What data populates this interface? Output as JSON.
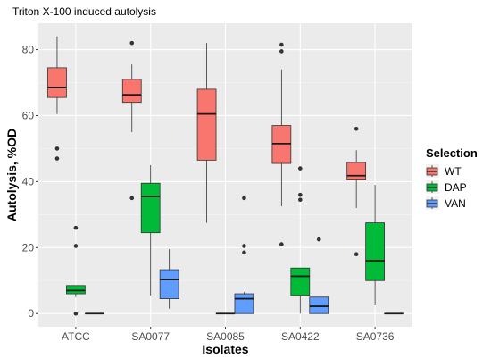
{
  "chart_data": {
    "type": "box",
    "title": "Triton X-100 induced autolysis",
    "xlabel": "Isolates",
    "ylabel": "Autolysis, %OD",
    "ylim": [
      -4,
      88
    ],
    "yticks": [
      0,
      20,
      40,
      60,
      80
    ],
    "categories": [
      "ATCC",
      "SA0077",
      "SA0085",
      "SA0422",
      "SA0736"
    ],
    "legend": {
      "title": "Selection",
      "placement": "right"
    },
    "grid": true,
    "series": [
      {
        "name": "WT",
        "color": "#F8766D",
        "boxes": [
          {
            "q1": 65.5,
            "median": 68.5,
            "q3": 74.5,
            "whisker_low": 60.5,
            "whisker_high": 84,
            "outliers": [
              50,
              47
            ]
          },
          {
            "q1": 64,
            "median": 66.3,
            "q3": 71,
            "whisker_low": 55,
            "whisker_high": 75.5,
            "outliers": [
              82,
              35
            ]
          },
          {
            "q1": 46.5,
            "median": 60.5,
            "q3": 68,
            "whisker_low": 27.5,
            "whisker_high": 82,
            "outliers": []
          },
          {
            "q1": 45.5,
            "median": 51.5,
            "q3": 57,
            "whisker_low": 32.5,
            "whisker_high": 74,
            "outliers": [
              81.5,
              79.5,
              21
            ]
          },
          {
            "q1": 40.5,
            "median": 41.8,
            "q3": 45.8,
            "whisker_low": 32,
            "whisker_high": 49.5,
            "outliers": [
              56,
              18
            ]
          }
        ]
      },
      {
        "name": "DAP",
        "color": "#00BA38",
        "boxes": [
          {
            "q1": 6,
            "median": 7,
            "q3": 8.5,
            "whisker_low": 5,
            "whisker_high": 8.5,
            "outliers": [
              26,
              20.5,
              0
            ]
          },
          {
            "q1": 24.5,
            "median": 35.5,
            "q3": 39.5,
            "whisker_low": 5.5,
            "whisker_high": 45,
            "outliers": []
          },
          {
            "q1": 0,
            "median": 0,
            "q3": 0,
            "whisker_low": 0,
            "whisker_high": 0,
            "outliers": []
          },
          {
            "q1": 5.5,
            "median": 11.3,
            "q3": 13.8,
            "whisker_low": 0,
            "whisker_high": 13.8,
            "outliers": [
              44,
              36,
              34.5
            ]
          },
          {
            "q1": 10,
            "median": 16,
            "q3": 27.5,
            "whisker_low": 2.5,
            "whisker_high": 39,
            "outliers": []
          }
        ]
      },
      {
        "name": "VAN",
        "color": "#619CFF",
        "boxes": [
          {
            "q1": 0,
            "median": 0,
            "q3": 0,
            "whisker_low": 0,
            "whisker_high": 0,
            "outliers": []
          },
          {
            "q1": 4.5,
            "median": 10.3,
            "q3": 13.3,
            "whisker_low": 1.5,
            "whisker_high": 19.5,
            "outliers": []
          },
          {
            "q1": 0,
            "median": 4.5,
            "q3": 6,
            "whisker_low": 0,
            "whisker_high": 6.5,
            "outliers": [
              35,
              20.5,
              18.5
            ]
          },
          {
            "q1": 0,
            "median": 2.2,
            "q3": 5,
            "whisker_low": 0,
            "whisker_high": 5,
            "outliers": [
              22.5
            ]
          },
          {
            "q1": 0,
            "median": 0,
            "q3": 0,
            "whisker_low": 0,
            "whisker_high": 0,
            "outliers": []
          }
        ]
      }
    ]
  }
}
